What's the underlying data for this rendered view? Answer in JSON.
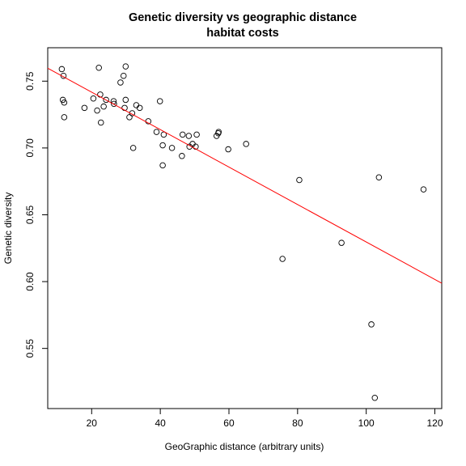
{
  "chart_data": {
    "type": "scatter",
    "title": "Genetic diversity vs geographic distance",
    "subtitle": "habitat costs",
    "xlabel": "GeoGraphic distance (arbitrary units)",
    "ylabel": "Genetic diversity",
    "xlim": [
      7.2,
      122
    ],
    "ylim": [
      0.505,
      0.775
    ],
    "x_ticks": [
      20,
      40,
      60,
      80,
      100,
      120
    ],
    "y_ticks": [
      0.55,
      0.6,
      0.65,
      0.7,
      0.75
    ],
    "x_tick_labels": [
      "20",
      "40",
      "60",
      "80",
      "100",
      "120"
    ],
    "y_tick_labels": [
      "0.55",
      "0.60",
      "0.65",
      "0.70",
      "0.75"
    ],
    "series": [
      {
        "name": "observations",
        "marker": "open-circle",
        "color": "#000000",
        "points": [
          [
            11.3,
            0.759
          ],
          [
            11.8,
            0.754
          ],
          [
            11.6,
            0.736
          ],
          [
            12.0,
            0.734
          ],
          [
            12.0,
            0.723
          ],
          [
            17.9,
            0.73
          ],
          [
            20.5,
            0.737
          ],
          [
            21.6,
            0.728
          ],
          [
            22.1,
            0.76
          ],
          [
            22.5,
            0.74
          ],
          [
            22.7,
            0.719
          ],
          [
            23.5,
            0.731
          ],
          [
            24.2,
            0.736
          ],
          [
            26.4,
            0.735
          ],
          [
            26.5,
            0.733
          ],
          [
            28.4,
            0.749
          ],
          [
            29.3,
            0.754
          ],
          [
            29.9,
            0.761
          ],
          [
            29.6,
            0.73
          ],
          [
            29.9,
            0.736
          ],
          [
            31.0,
            0.723
          ],
          [
            31.8,
            0.726
          ],
          [
            32.1,
            0.7
          ],
          [
            33.0,
            0.732
          ],
          [
            34.0,
            0.73
          ],
          [
            36.5,
            0.72
          ],
          [
            38.9,
            0.712
          ],
          [
            39.9,
            0.735
          ],
          [
            40.7,
            0.702
          ],
          [
            41.0,
            0.71
          ],
          [
            40.7,
            0.687
          ],
          [
            43.4,
            0.7
          ],
          [
            46.3,
            0.694
          ],
          [
            46.5,
            0.71
          ],
          [
            48.3,
            0.709
          ],
          [
            48.5,
            0.701
          ],
          [
            49.4,
            0.703
          ],
          [
            50.3,
            0.701
          ],
          [
            50.6,
            0.71
          ],
          [
            56.4,
            0.709
          ],
          [
            56.9,
            0.711
          ],
          [
            57.0,
            0.712
          ],
          [
            59.8,
            0.699
          ],
          [
            65.0,
            0.703
          ],
          [
            75.6,
            0.617
          ],
          [
            80.5,
            0.676
          ],
          [
            92.8,
            0.629
          ],
          [
            101.5,
            0.568
          ],
          [
            102.5,
            0.513
          ],
          [
            103.7,
            0.678
          ],
          [
            116.7,
            0.669
          ]
        ]
      }
    ],
    "regression_line": {
      "color": "#ff0000",
      "x": [
        7.2,
        122
      ],
      "y": [
        0.7597,
        0.5988
      ]
    },
    "grid": false,
    "legend": "none"
  }
}
